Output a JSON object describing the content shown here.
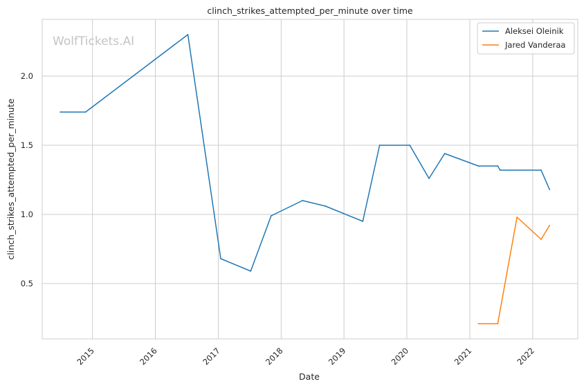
{
  "chart_data": {
    "type": "line",
    "title": "clinch_strikes_attempted_per_minute over time",
    "xlabel": "Date",
    "ylabel": "clinch_strikes_attempted_per_minute",
    "watermark": "WolfTickets.AI",
    "xlim": [
      "2014-03-15",
      "2022-09-20"
    ],
    "ylim": [
      0.1,
      2.41
    ],
    "x_ticks": [
      "2015",
      "2016",
      "2017",
      "2018",
      "2019",
      "2020",
      "2021",
      "2022"
    ],
    "y_ticks": [
      "0.5",
      "1.0",
      "1.5",
      "2.0"
    ],
    "grid": true,
    "legend_position": "top-right",
    "series": [
      {
        "name": "Aleksei Oleinik",
        "color": "#1f77b4",
        "points": [
          {
            "x": "2014-06-28",
            "y": 1.74
          },
          {
            "x": "2014-11-22",
            "y": 1.74
          },
          {
            "x": "2016-07-08",
            "y": 2.3
          },
          {
            "x": "2017-01-15",
            "y": 0.68
          },
          {
            "x": "2017-07-08",
            "y": 0.59
          },
          {
            "x": "2017-11-04",
            "y": 0.99
          },
          {
            "x": "2018-05-05",
            "y": 1.1
          },
          {
            "x": "2018-09-15",
            "y": 1.06
          },
          {
            "x": "2019-04-20",
            "y": 0.95
          },
          {
            "x": "2019-07-27",
            "y": 1.5
          },
          {
            "x": "2020-01-18",
            "y": 1.5
          },
          {
            "x": "2020-05-09",
            "y": 1.26
          },
          {
            "x": "2020-08-08",
            "y": 1.44
          },
          {
            "x": "2021-02-20",
            "y": 1.35
          },
          {
            "x": "2021-06-12",
            "y": 1.35
          },
          {
            "x": "2021-06-26",
            "y": 1.32
          },
          {
            "x": "2022-02-19",
            "y": 1.32
          },
          {
            "x": "2022-04-09",
            "y": 1.18
          }
        ]
      },
      {
        "name": "Jared Vanderaa",
        "color": "#ff7f0e",
        "points": [
          {
            "x": "2021-02-20",
            "y": 0.21
          },
          {
            "x": "2021-06-12",
            "y": 0.21
          },
          {
            "x": "2021-10-02",
            "y": 0.98
          },
          {
            "x": "2022-02-19",
            "y": 0.82
          },
          {
            "x": "2022-04-09",
            "y": 0.92
          }
        ]
      }
    ]
  }
}
